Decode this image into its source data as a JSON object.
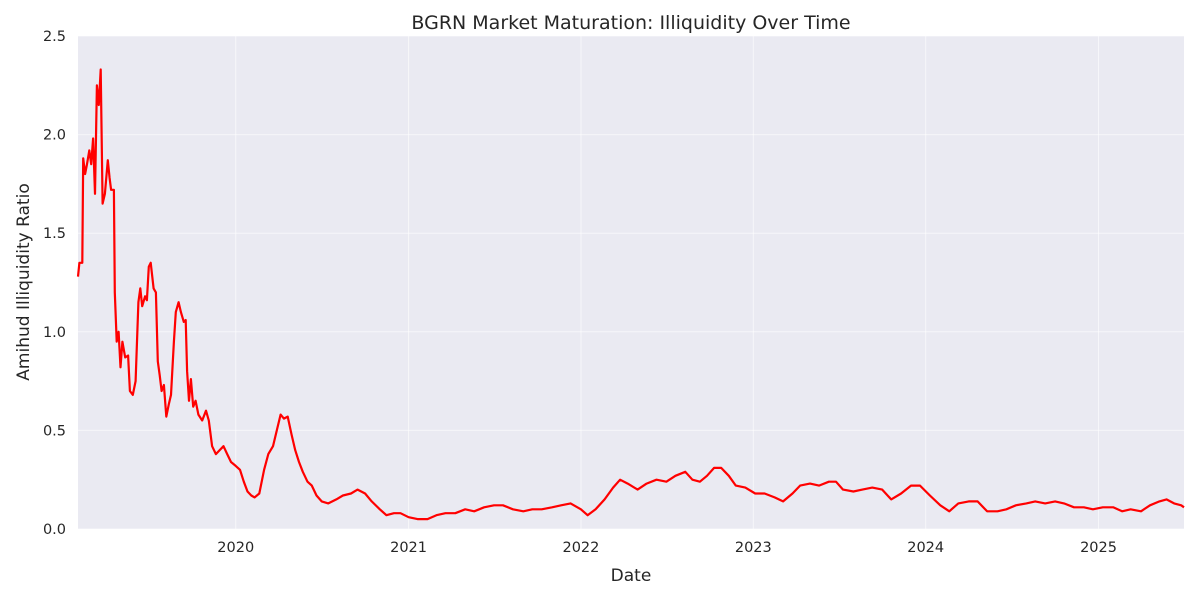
{
  "chart_data": {
    "type": "line",
    "title": "BGRN Market Maturation: Illiquidity Over Time",
    "xlabel": "Date",
    "ylabel": "Amihud Illiquidity Ratio",
    "xlim": [
      "2019-02-01",
      "2025-07-01"
    ],
    "ylim": [
      0,
      2.5
    ],
    "grid": true,
    "legend": "none",
    "x_ticks": [
      "2020-01-01",
      "2021-01-01",
      "2022-01-01",
      "2023-01-01",
      "2024-01-01",
      "2025-01-01"
    ],
    "x_tick_labels": [
      "2020",
      "2021",
      "2022",
      "2023",
      "2024",
      "2025"
    ],
    "y_ticks": [
      0,
      0.5,
      1,
      1.5,
      2,
      2.5
    ],
    "y_tick_labels": [
      "0.0",
      "0.5",
      "1.0",
      "1.5",
      "2.0",
      "2.5"
    ],
    "colors": {
      "background": "#eaeaf2",
      "line": "#ff0000",
      "grid": "#ffffff"
    },
    "series": [
      {
        "points": [
          [
            "2019-02-01",
            1.28
          ],
          [
            "2019-02-04",
            1.35
          ],
          [
            "2019-02-10",
            1.35
          ],
          [
            "2019-02-12",
            1.88
          ],
          [
            "2019-02-16",
            1.8
          ],
          [
            "2019-02-20",
            1.85
          ],
          [
            "2019-02-25",
            1.92
          ],
          [
            "2019-03-01",
            1.85
          ],
          [
            "2019-03-05",
            1.98
          ],
          [
            "2019-03-09",
            1.7
          ],
          [
            "2019-03-13",
            2.25
          ],
          [
            "2019-03-17",
            2.15
          ],
          [
            "2019-03-21",
            2.33
          ],
          [
            "2019-03-25",
            1.65
          ],
          [
            "2019-03-30",
            1.7
          ],
          [
            "2019-04-05",
            1.87
          ],
          [
            "2019-04-09",
            1.78
          ],
          [
            "2019-04-12",
            1.72
          ],
          [
            "2019-04-18",
            1.72
          ],
          [
            "2019-04-20",
            1.2
          ],
          [
            "2019-04-24",
            0.95
          ],
          [
            "2019-04-28",
            1.0
          ],
          [
            "2019-05-02",
            0.82
          ],
          [
            "2019-05-06",
            0.95
          ],
          [
            "2019-05-12",
            0.87
          ],
          [
            "2019-05-18",
            0.88
          ],
          [
            "2019-05-22",
            0.7
          ],
          [
            "2019-05-28",
            0.68
          ],
          [
            "2019-06-03",
            0.75
          ],
          [
            "2019-06-09",
            1.15
          ],
          [
            "2019-06-13",
            1.22
          ],
          [
            "2019-06-17",
            1.13
          ],
          [
            "2019-06-23",
            1.18
          ],
          [
            "2019-06-27",
            1.16
          ],
          [
            "2019-07-01",
            1.33
          ],
          [
            "2019-07-05",
            1.35
          ],
          [
            "2019-07-11",
            1.22
          ],
          [
            "2019-07-16",
            1.2
          ],
          [
            "2019-07-20",
            0.85
          ],
          [
            "2019-07-24",
            0.78
          ],
          [
            "2019-07-28",
            0.7
          ],
          [
            "2019-08-02",
            0.73
          ],
          [
            "2019-08-07",
            0.57
          ],
          [
            "2019-08-12",
            0.63
          ],
          [
            "2019-08-17",
            0.68
          ],
          [
            "2019-08-23",
            0.95
          ],
          [
            "2019-08-27",
            1.1
          ],
          [
            "2019-09-02",
            1.15
          ],
          [
            "2019-09-07",
            1.1
          ],
          [
            "2019-09-13",
            1.05
          ],
          [
            "2019-09-17",
            1.06
          ],
          [
            "2019-09-20",
            0.8
          ],
          [
            "2019-09-24",
            0.65
          ],
          [
            "2019-09-28",
            0.76
          ],
          [
            "2019-10-03",
            0.62
          ],
          [
            "2019-10-08",
            0.65
          ],
          [
            "2019-10-14",
            0.58
          ],
          [
            "2019-10-22",
            0.55
          ],
          [
            "2019-10-30",
            0.6
          ],
          [
            "2019-11-05",
            0.55
          ],
          [
            "2019-11-12",
            0.42
          ],
          [
            "2019-11-20",
            0.38
          ],
          [
            "2019-11-28",
            0.4
          ],
          [
            "2019-12-06",
            0.42
          ],
          [
            "2019-12-14",
            0.38
          ],
          [
            "2019-12-22",
            0.34
          ],
          [
            "2020-01-01",
            0.32
          ],
          [
            "2020-01-10",
            0.3
          ],
          [
            "2020-01-18",
            0.24
          ],
          [
            "2020-01-26",
            0.19
          ],
          [
            "2020-02-03",
            0.17
          ],
          [
            "2020-02-10",
            0.16
          ],
          [
            "2020-02-20",
            0.18
          ],
          [
            "2020-03-01",
            0.3
          ],
          [
            "2020-03-10",
            0.38
          ],
          [
            "2020-03-20",
            0.42
          ],
          [
            "2020-03-28",
            0.5
          ],
          [
            "2020-04-05",
            0.58
          ],
          [
            "2020-04-12",
            0.56
          ],
          [
            "2020-04-20",
            0.57
          ],
          [
            "2020-04-28",
            0.48
          ],
          [
            "2020-05-06",
            0.4
          ],
          [
            "2020-05-14",
            0.34
          ],
          [
            "2020-05-22",
            0.29
          ],
          [
            "2020-06-01",
            0.24
          ],
          [
            "2020-06-10",
            0.22
          ],
          [
            "2020-06-20",
            0.17
          ],
          [
            "2020-07-01",
            0.14
          ],
          [
            "2020-07-15",
            0.13
          ],
          [
            "2020-08-01",
            0.15
          ],
          [
            "2020-08-15",
            0.17
          ],
          [
            "2020-09-01",
            0.18
          ],
          [
            "2020-09-15",
            0.2
          ],
          [
            "2020-10-01",
            0.18
          ],
          [
            "2020-10-15",
            0.14
          ],
          [
            "2020-11-01",
            0.1
          ],
          [
            "2020-11-15",
            0.07
          ],
          [
            "2020-12-01",
            0.08
          ],
          [
            "2020-12-15",
            0.08
          ],
          [
            "2021-01-01",
            0.06
          ],
          [
            "2021-01-20",
            0.05
          ],
          [
            "2021-02-10",
            0.05
          ],
          [
            "2021-03-01",
            0.07
          ],
          [
            "2021-03-20",
            0.08
          ],
          [
            "2021-04-10",
            0.08
          ],
          [
            "2021-05-01",
            0.1
          ],
          [
            "2021-05-20",
            0.09
          ],
          [
            "2021-06-10",
            0.11
          ],
          [
            "2021-07-01",
            0.12
          ],
          [
            "2021-07-20",
            0.12
          ],
          [
            "2021-08-10",
            0.1
          ],
          [
            "2021-09-01",
            0.09
          ],
          [
            "2021-09-20",
            0.1
          ],
          [
            "2021-10-10",
            0.1
          ],
          [
            "2021-11-01",
            0.11
          ],
          [
            "2021-11-20",
            0.12
          ],
          [
            "2021-12-10",
            0.13
          ],
          [
            "2022-01-01",
            0.1
          ],
          [
            "2022-01-15",
            0.07
          ],
          [
            "2022-02-01",
            0.1
          ],
          [
            "2022-02-20",
            0.15
          ],
          [
            "2022-03-10",
            0.21
          ],
          [
            "2022-03-25",
            0.25
          ],
          [
            "2022-04-10",
            0.23
          ],
          [
            "2022-05-01",
            0.2
          ],
          [
            "2022-05-20",
            0.23
          ],
          [
            "2022-06-10",
            0.25
          ],
          [
            "2022-07-01",
            0.24
          ],
          [
            "2022-07-20",
            0.27
          ],
          [
            "2022-08-10",
            0.29
          ],
          [
            "2022-08-25",
            0.25
          ],
          [
            "2022-09-10",
            0.24
          ],
          [
            "2022-09-25",
            0.27
          ],
          [
            "2022-10-10",
            0.31
          ],
          [
            "2022-10-25",
            0.31
          ],
          [
            "2022-11-10",
            0.27
          ],
          [
            "2022-11-25",
            0.22
          ],
          [
            "2022-12-15",
            0.21
          ],
          [
            "2023-01-05",
            0.18
          ],
          [
            "2023-01-25",
            0.18
          ],
          [
            "2023-02-15",
            0.16
          ],
          [
            "2023-03-05",
            0.14
          ],
          [
            "2023-03-25",
            0.18
          ],
          [
            "2023-04-10",
            0.22
          ],
          [
            "2023-05-01",
            0.23
          ],
          [
            "2023-05-20",
            0.22
          ],
          [
            "2023-06-10",
            0.24
          ],
          [
            "2023-06-25",
            0.24
          ],
          [
            "2023-07-10",
            0.2
          ],
          [
            "2023-08-01",
            0.19
          ],
          [
            "2023-08-20",
            0.2
          ],
          [
            "2023-09-10",
            0.21
          ],
          [
            "2023-10-01",
            0.2
          ],
          [
            "2023-10-20",
            0.15
          ],
          [
            "2023-11-10",
            0.18
          ],
          [
            "2023-12-01",
            0.22
          ],
          [
            "2023-12-20",
            0.22
          ],
          [
            "2024-01-10",
            0.17
          ],
          [
            "2024-02-01",
            0.12
          ],
          [
            "2024-02-20",
            0.09
          ],
          [
            "2024-03-10",
            0.13
          ],
          [
            "2024-04-01",
            0.14
          ],
          [
            "2024-04-20",
            0.14
          ],
          [
            "2024-05-10",
            0.09
          ],
          [
            "2024-06-01",
            0.09
          ],
          [
            "2024-06-20",
            0.1
          ],
          [
            "2024-07-10",
            0.12
          ],
          [
            "2024-08-01",
            0.13
          ],
          [
            "2024-08-20",
            0.14
          ],
          [
            "2024-09-10",
            0.13
          ],
          [
            "2024-10-01",
            0.14
          ],
          [
            "2024-10-20",
            0.13
          ],
          [
            "2024-11-10",
            0.11
          ],
          [
            "2024-12-01",
            0.11
          ],
          [
            "2024-12-20",
            0.1
          ],
          [
            "2025-01-10",
            0.11
          ],
          [
            "2025-02-01",
            0.11
          ],
          [
            "2025-02-20",
            0.09
          ],
          [
            "2025-03-10",
            0.1
          ],
          [
            "2025-04-01",
            0.09
          ],
          [
            "2025-04-20",
            0.12
          ],
          [
            "2025-05-10",
            0.14
          ],
          [
            "2025-05-25",
            0.15
          ],
          [
            "2025-06-10",
            0.13
          ],
          [
            "2025-06-25",
            0.12
          ],
          [
            "2025-07-01",
            0.11
          ]
        ]
      }
    ]
  }
}
